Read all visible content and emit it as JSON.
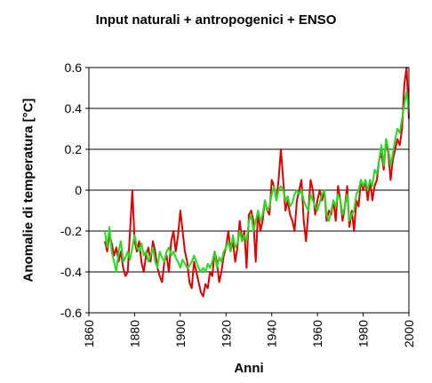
{
  "chart_data": {
    "type": "line",
    "title": "Input naturali + antropogenici + ENSO",
    "xlabel": "Anni",
    "ylabel": "Anomalie di temperatura [°C]",
    "xlim": [
      1860,
      2000
    ],
    "ylim": [
      -0.6,
      0.6
    ],
    "xticks": [
      1860,
      1880,
      1900,
      1920,
      1940,
      1960,
      1980,
      2000
    ],
    "yticks": [
      0.6,
      0.4,
      0.2,
      0,
      -0.2,
      -0.4,
      -0.6
    ],
    "ytick_labels": [
      "0.6",
      "0.4",
      "0.2",
      "0",
      "-0.2",
      "-0.4",
      "-0.6"
    ],
    "grid": "horizontal",
    "series": [
      {
        "color": "#e00000",
        "x": [
          1867,
          1868,
          1869,
          1870,
          1871,
          1872,
          1873,
          1874,
          1875,
          1876,
          1877,
          1878,
          1879,
          1880,
          1881,
          1882,
          1883,
          1884,
          1885,
          1886,
          1887,
          1888,
          1889,
          1890,
          1891,
          1892,
          1893,
          1894,
          1895,
          1896,
          1897,
          1898,
          1899,
          1900,
          1901,
          1902,
          1903,
          1904,
          1905,
          1906,
          1907,
          1908,
          1909,
          1910,
          1911,
          1912,
          1913,
          1914,
          1915,
          1916,
          1917,
          1918,
          1919,
          1920,
          1921,
          1922,
          1923,
          1924,
          1925,
          1926,
          1927,
          1928,
          1929,
          1930,
          1931,
          1932,
          1933,
          1934,
          1935,
          1936,
          1937,
          1938,
          1939,
          1940,
          1941,
          1942,
          1943,
          1944,
          1945,
          1946,
          1947,
          1948,
          1949,
          1950,
          1951,
          1952,
          1953,
          1954,
          1955,
          1956,
          1957,
          1958,
          1959,
          1960,
          1961,
          1962,
          1963,
          1964,
          1965,
          1966,
          1967,
          1968,
          1969,
          1970,
          1971,
          1972,
          1973,
          1974,
          1975,
          1976,
          1977,
          1978,
          1979,
          1980,
          1981,
          1982,
          1983,
          1984,
          1985,
          1986,
          1987,
          1988,
          1989,
          1990,
          1991,
          1992,
          1993,
          1994,
          1995,
          1996,
          1997,
          1998,
          1999,
          2000
        ],
        "values": [
          -0.25,
          -0.3,
          -0.22,
          -0.26,
          -0.32,
          -0.28,
          -0.35,
          -0.3,
          -0.38,
          -0.42,
          -0.4,
          -0.2,
          0.0,
          -0.25,
          -0.3,
          -0.25,
          -0.35,
          -0.4,
          -0.32,
          -0.28,
          -0.35,
          -0.25,
          -0.3,
          -0.38,
          -0.42,
          -0.45,
          -0.35,
          -0.32,
          -0.4,
          -0.25,
          -0.2,
          -0.3,
          -0.22,
          -0.1,
          -0.2,
          -0.3,
          -0.35,
          -0.45,
          -0.48,
          -0.35,
          -0.4,
          -0.45,
          -0.5,
          -0.52,
          -0.46,
          -0.48,
          -0.4,
          -0.42,
          -0.3,
          -0.35,
          -0.45,
          -0.4,
          -0.32,
          -0.28,
          -0.2,
          -0.3,
          -0.25,
          -0.35,
          -0.28,
          -0.15,
          -0.25,
          -0.2,
          -0.38,
          -0.12,
          -0.1,
          -0.15,
          -0.35,
          -0.1,
          -0.2,
          -0.15,
          -0.05,
          -0.1,
          -0.12,
          0.05,
          0.02,
          -0.05,
          0.05,
          0.2,
          0.05,
          -0.1,
          -0.05,
          -0.12,
          -0.15,
          -0.2,
          -0.05,
          0.0,
          0.05,
          -0.15,
          -0.25,
          -0.1,
          0.05,
          0.0,
          -0.12,
          -0.05,
          0.0,
          -0.05,
          0.0,
          -0.15,
          -0.1,
          -0.12,
          -0.05,
          -0.15,
          0.02,
          -0.05,
          -0.15,
          -0.08,
          0.02,
          -0.18,
          -0.1,
          -0.2,
          -0.05,
          -0.08,
          0.05,
          0.0,
          0.05,
          -0.05,
          0.05,
          -0.05,
          0.02,
          0.05,
          0.15,
          0.18,
          0.1,
          0.25,
          0.18,
          0.05,
          0.15,
          0.2,
          0.25,
          0.22,
          0.3,
          0.52,
          0.6,
          0.35
        ]
      },
      {
        "color": "#22dd22",
        "x": [
          1867,
          1868,
          1869,
          1870,
          1871,
          1872,
          1873,
          1874,
          1875,
          1876,
          1877,
          1878,
          1879,
          1880,
          1881,
          1882,
          1883,
          1884,
          1885,
          1886,
          1887,
          1888,
          1889,
          1890,
          1891,
          1892,
          1893,
          1894,
          1895,
          1896,
          1897,
          1898,
          1899,
          1900,
          1901,
          1902,
          1903,
          1904,
          1905,
          1906,
          1907,
          1908,
          1909,
          1910,
          1911,
          1912,
          1913,
          1914,
          1915,
          1916,
          1917,
          1918,
          1919,
          1920,
          1921,
          1922,
          1923,
          1924,
          1925,
          1926,
          1927,
          1928,
          1929,
          1930,
          1931,
          1932,
          1933,
          1934,
          1935,
          1936,
          1937,
          1938,
          1939,
          1940,
          1941,
          1942,
          1943,
          1944,
          1945,
          1946,
          1947,
          1948,
          1949,
          1950,
          1951,
          1952,
          1953,
          1954,
          1955,
          1956,
          1957,
          1958,
          1959,
          1960,
          1961,
          1962,
          1963,
          1964,
          1965,
          1966,
          1967,
          1968,
          1969,
          1970,
          1971,
          1972,
          1973,
          1974,
          1975,
          1976,
          1977,
          1978,
          1979,
          1980,
          1981,
          1982,
          1983,
          1984,
          1985,
          1986,
          1987,
          1988,
          1989,
          1990,
          1991,
          1992,
          1993,
          1994,
          1995,
          1996,
          1997,
          1998,
          1999,
          2000
        ],
        "values": [
          -0.2,
          -0.28,
          -0.18,
          -0.3,
          -0.35,
          -0.4,
          -0.3,
          -0.25,
          -0.35,
          -0.33,
          -0.3,
          -0.34,
          -0.28,
          -0.22,
          -0.28,
          -0.3,
          -0.26,
          -0.32,
          -0.3,
          -0.35,
          -0.32,
          -0.28,
          -0.35,
          -0.38,
          -0.3,
          -0.33,
          -0.35,
          -0.3,
          -0.28,
          -0.32,
          -0.3,
          -0.33,
          -0.35,
          -0.38,
          -0.34,
          -0.36,
          -0.38,
          -0.37,
          -0.35,
          -0.32,
          -0.35,
          -0.38,
          -0.4,
          -0.38,
          -0.4,
          -0.36,
          -0.38,
          -0.35,
          -0.3,
          -0.38,
          -0.33,
          -0.35,
          -0.3,
          -0.28,
          -0.25,
          -0.3,
          -0.22,
          -0.28,
          -0.26,
          -0.2,
          -0.25,
          -0.22,
          -0.25,
          -0.15,
          -0.12,
          -0.2,
          -0.15,
          -0.1,
          -0.15,
          -0.12,
          -0.05,
          -0.1,
          -0.08,
          -0.02,
          0.02,
          -0.05,
          0.0,
          0.02,
          0.0,
          -0.05,
          -0.03,
          -0.08,
          -0.06,
          -0.02,
          0.0,
          -0.02,
          0.0,
          -0.05,
          -0.08,
          -0.1,
          -0.02,
          -0.05,
          -0.08,
          -0.1,
          -0.06,
          -0.02,
          0.0,
          -0.12,
          -0.15,
          -0.1,
          -0.05,
          -0.08,
          -0.02,
          -0.05,
          -0.12,
          -0.08,
          -0.02,
          -0.15,
          -0.12,
          -0.1,
          -0.02,
          0.0,
          0.05,
          0.02,
          0.05,
          0.0,
          0.05,
          0.02,
          0.1,
          0.08,
          0.15,
          0.22,
          0.12,
          0.25,
          0.2,
          0.12,
          0.18,
          0.25,
          0.3,
          0.28,
          0.35,
          0.42,
          0.48,
          0.38
        ]
      }
    ]
  }
}
